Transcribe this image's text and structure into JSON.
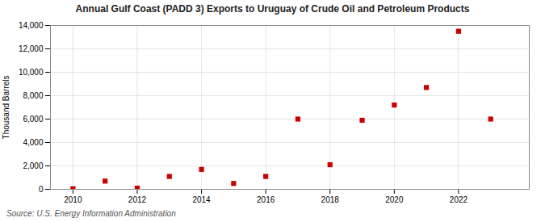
{
  "chart_data": {
    "type": "scatter",
    "title": "Annual Gulf Coast (PADD 3) Exports to Uruguay of Crude Oil and Petroleum Products",
    "ylabel": "Thousand Barrels",
    "source": "Source: U.S. Energy Information Administration",
    "x": [
      2010,
      2011,
      2012,
      2013,
      2014,
      2015,
      2016,
      2017,
      2018,
      2019,
      2020,
      2021,
      2022,
      2023
    ],
    "values": [
      50,
      700,
      100,
      1100,
      1700,
      500,
      1100,
      6000,
      2100,
      5900,
      7200,
      8700,
      13500,
      6000
    ],
    "xlim": [
      2009.3,
      2024.2
    ],
    "xticks": [
      2010,
      2012,
      2014,
      2016,
      2018,
      2020,
      2022
    ],
    "ylim": [
      0,
      14000
    ],
    "yticks": [
      0,
      {
        "value": 2000,
        "label": "2,000"
      },
      {
        "value": 4000,
        "label": "4,000"
      },
      {
        "value": 6000,
        "label": "6,000"
      },
      {
        "value": 8000,
        "label": "8,000"
      },
      {
        "value": 10000,
        "label": "10,000"
      },
      {
        "value": 12000,
        "label": "12,000"
      },
      {
        "value": 14000,
        "label": "14,000"
      }
    ],
    "color": "#cc0000",
    "marker": "square",
    "grid": true
  }
}
